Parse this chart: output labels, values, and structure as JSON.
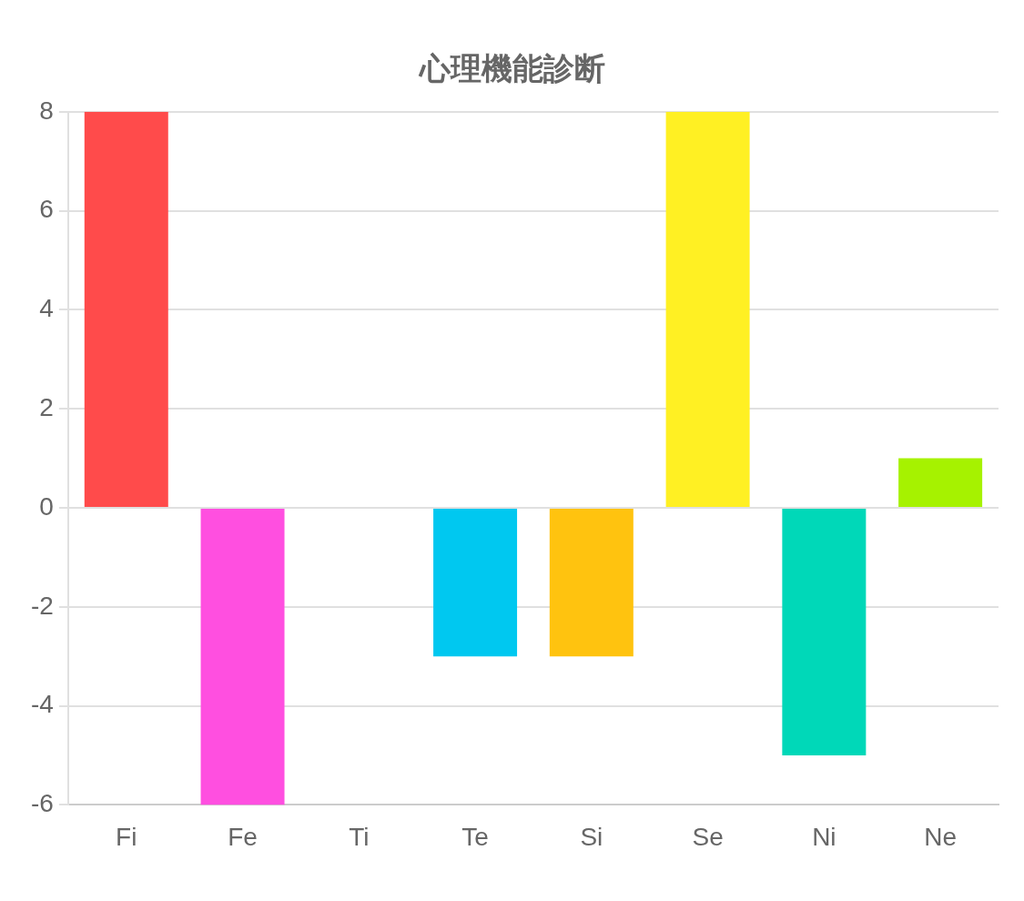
{
  "chart_data": {
    "type": "bar",
    "title": "心理機能診断",
    "categories": [
      "Fi",
      "Fe",
      "Ti",
      "Te",
      "Si",
      "Se",
      "Ni",
      "Ne"
    ],
    "values": [
      8,
      -6,
      0,
      -3,
      -3,
      8,
      -5,
      1
    ],
    "colors": [
      "#ff4b4b",
      "#ff4fe0",
      "#8a6cff",
      "#00c8f0",
      "#ffc30f",
      "#fff023",
      "#00d8b8",
      "#a6f200"
    ],
    "ylim": [
      -6,
      8
    ],
    "yticks": [
      -6,
      -4,
      -2,
      0,
      2,
      4,
      6,
      8
    ],
    "grid": "y",
    "legend": false
  }
}
